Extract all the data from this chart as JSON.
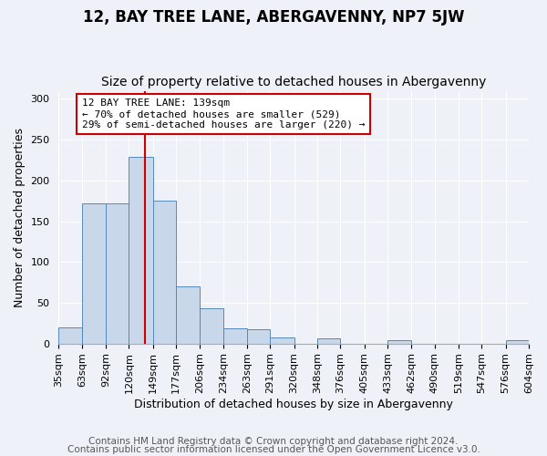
{
  "title": "12, BAY TREE LANE, ABERGAVENNY, NP7 5JW",
  "subtitle": "Size of property relative to detached houses in Abergavenny",
  "xlabel": "Distribution of detached houses by size in Abergavenny",
  "ylabel": "Number of detached properties",
  "footer_lines": [
    "Contains HM Land Registry data © Crown copyright and database right 2024.",
    "Contains public sector information licensed under the Open Government Licence v3.0."
  ],
  "bin_edges": [
    35,
    63,
    92,
    120,
    149,
    177,
    206,
    234,
    263,
    291,
    320,
    348,
    376,
    405,
    433,
    462,
    490,
    519,
    547,
    576,
    604
  ],
  "bin_counts": [
    20,
    172,
    172,
    229,
    175,
    70,
    43,
    19,
    18,
    8,
    0,
    6,
    0,
    0,
    4,
    0,
    0,
    0,
    0,
    4
  ],
  "bar_facecolor": "#c8d8ea",
  "bar_edgecolor": "#5588bb",
  "vline_x": 139,
  "vline_color": "#cc0000",
  "annotation_text": "12 BAY TREE LANE: 139sqm\n← 70% of detached houses are smaller (529)\n29% of semi-detached houses are larger (220) →",
  "annotation_box_edgecolor": "#cc0000",
  "annotation_box_facecolor": "#ffffff",
  "ylim": [
    0,
    310
  ],
  "xlim": [
    35,
    604
  ],
  "background_color": "#eef2f8",
  "grid_color": "#ffffff",
  "title_fontsize": 12,
  "subtitle_fontsize": 10,
  "axis_label_fontsize": 9,
  "tick_label_fontsize": 8,
  "footer_fontsize": 7.5
}
